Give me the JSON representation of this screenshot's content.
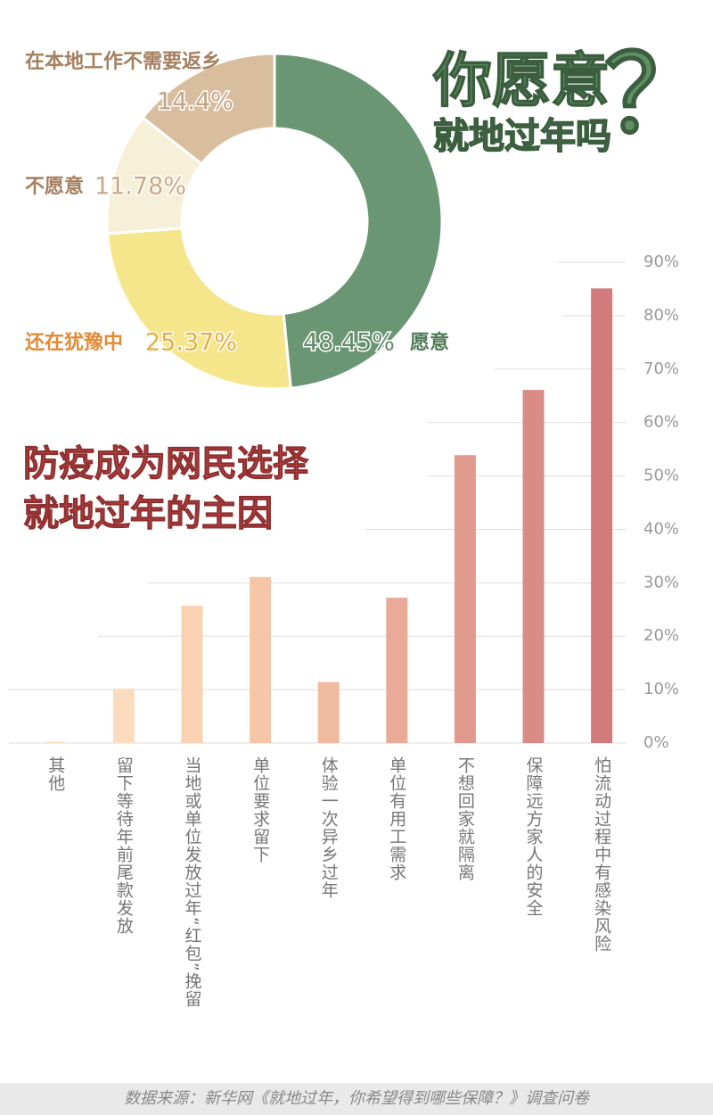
{
  "chart_data": [
    {
      "type": "donut",
      "title_lines": [
        "你愿意",
        "就地过年吗",
        "？"
      ],
      "categories": [
        "愿意",
        "还在犹豫中",
        "不愿意",
        "在本地工作不需要返乡"
      ],
      "values": [
        48.45,
        25.37,
        11.78,
        14.4
      ],
      "value_labels": [
        "48.45%",
        "25.37%",
        "11.78%",
        "14.4%"
      ],
      "colors": [
        "#6b9673",
        "#f5e68c",
        "#f6f0d8",
        "#d9bd9f"
      ]
    },
    {
      "type": "bar",
      "title_lines": [
        "防疫成为网民选择",
        "就地过年的主因"
      ],
      "categories": [
        "其他",
        "留下等待年前尾款发放",
        "当地或单位发放过年“红包”挽留",
        "单位要求留下",
        "体验一次异乡过年",
        "单位有用工需求",
        "不想回家就隔离",
        "保障远方家人的安全",
        "怕流动过程中有感染风险"
      ],
      "values": [
        0.3,
        10.2,
        25.7,
        31.1,
        11.4,
        27.2,
        53.9,
        66.1,
        85.1
      ],
      "colors": [
        "#fde3c8",
        "#fcdcbe",
        "#f9d2b3",
        "#f5c7a8",
        "#efbaa0",
        "#e9aa97",
        "#e19a8e",
        "#da8b86",
        "#d27b7c"
      ],
      "ylim": [
        0,
        90
      ],
      "yticks": [
        {
          "value": 0,
          "label": "0%"
        },
        {
          "value": 10,
          "label": "10%"
        },
        {
          "value": 20,
          "label": "20%"
        },
        {
          "value": 30,
          "label": "30%"
        },
        {
          "value": 40,
          "label": "40%"
        },
        {
          "value": 50,
          "label": "50%"
        },
        {
          "value": 60,
          "label": "60%"
        },
        {
          "value": 70,
          "label": "70%"
        },
        {
          "value": 80,
          "label": "80%"
        },
        {
          "value": 90,
          "label": "90%"
        }
      ],
      "grid": true
    }
  ],
  "source": "数据来源：新华网《就地过年，你希望得到哪些保障？》调查问卷"
}
